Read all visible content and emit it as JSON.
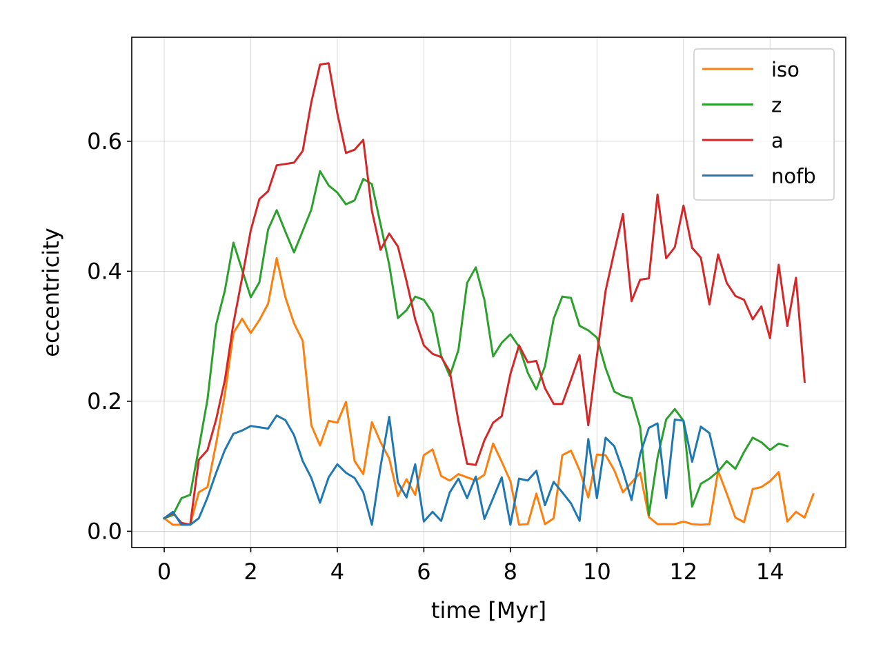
{
  "chart_data": {
    "type": "line",
    "title": "",
    "xlabel": "time   [Myr]",
    "ylabel": "eccentricity",
    "xlim": [
      -0.75,
      15.75
    ],
    "ylim": [
      -0.025,
      0.76
    ],
    "xticks": [
      0,
      2,
      4,
      6,
      8,
      10,
      12,
      14
    ],
    "xtick_labels": [
      "0",
      "2",
      "4",
      "6",
      "8",
      "10",
      "12",
      "14"
    ],
    "yticks": [
      0.0,
      0.2,
      0.4,
      0.6
    ],
    "ytick_labels": [
      "0.0",
      "0.2",
      "0.4",
      "0.6"
    ],
    "grid": true,
    "legend_position": "top-right",
    "series": [
      {
        "name": "iso",
        "color": "#ff7f0e",
        "x": [
          0.0,
          0.2,
          0.4,
          0.6,
          0.8,
          1.0,
          1.2,
          1.4,
          1.6,
          1.8,
          2.0,
          2.2,
          2.4,
          2.6,
          2.8,
          3.0,
          3.2,
          3.4,
          3.6,
          3.8,
          4.0,
          4.2,
          4.4,
          4.6,
          4.8,
          5.0,
          5.2,
          5.4,
          5.6,
          5.8,
          6.0,
          6.2,
          6.4,
          6.6,
          6.8,
          7.0,
          7.2,
          7.4,
          7.6,
          7.8,
          8.0,
          8.2,
          8.4,
          8.6,
          8.8,
          9.0,
          9.2,
          9.4,
          9.6,
          9.8,
          10.0,
          10.2,
          10.4,
          10.6,
          10.8,
          11.0,
          11.2,
          11.4,
          11.6,
          11.8,
          12.0,
          12.2,
          12.4,
          12.6,
          12.8,
          13.0,
          13.2,
          13.4,
          13.6,
          13.8,
          14.0,
          14.2,
          14.4,
          14.6,
          14.8,
          15.0
        ],
        "y": [
          0.02,
          0.01,
          0.01,
          0.01,
          0.06,
          0.068,
          0.135,
          0.21,
          0.305,
          0.327,
          0.305,
          0.325,
          0.35,
          0.42,
          0.36,
          0.32,
          0.293,
          0.163,
          0.132,
          0.17,
          0.167,
          0.199,
          0.108,
          0.088,
          0.168,
          0.137,
          0.112,
          0.054,
          0.08,
          0.056,
          0.117,
          0.126,
          0.085,
          0.078,
          0.088,
          0.083,
          0.078,
          0.087,
          0.135,
          0.107,
          0.077,
          0.01,
          0.011,
          0.058,
          0.011,
          0.02,
          0.117,
          0.124,
          0.094,
          0.052,
          0.118,
          0.117,
          0.094,
          0.06,
          0.075,
          0.09,
          0.022,
          0.011,
          0.011,
          0.011,
          0.015,
          0.011,
          0.01,
          0.011,
          0.093,
          0.058,
          0.021,
          0.014,
          0.065,
          0.068,
          0.077,
          0.091,
          0.015,
          0.03,
          0.021,
          0.057
        ]
      },
      {
        "name": "z",
        "color": "#2ca02c",
        "x": [
          0.0,
          0.2,
          0.4,
          0.6,
          0.8,
          1.0,
          1.2,
          1.4,
          1.6,
          1.8,
          2.0,
          2.2,
          2.4,
          2.6,
          2.8,
          3.0,
          3.2,
          3.4,
          3.6,
          3.8,
          4.0,
          4.2,
          4.4,
          4.6,
          4.8,
          5.0,
          5.2,
          5.4,
          5.6,
          5.8,
          6.0,
          6.2,
          6.4,
          6.6,
          6.8,
          7.0,
          7.2,
          7.4,
          7.6,
          7.8,
          8.0,
          8.2,
          8.4,
          8.6,
          8.8,
          9.0,
          9.2,
          9.4,
          9.6,
          9.8,
          10.0,
          10.2,
          10.4,
          10.6,
          10.8,
          11.0,
          11.2,
          11.4,
          11.6,
          11.8,
          12.0,
          12.2,
          12.4,
          12.6,
          12.8,
          13.0,
          13.2,
          13.4,
          13.6,
          13.8,
          14.0,
          14.2,
          14.4
        ],
        "y": [
          0.02,
          0.025,
          0.051,
          0.056,
          0.128,
          0.203,
          0.318,
          0.37,
          0.444,
          0.402,
          0.36,
          0.383,
          0.464,
          0.494,
          0.461,
          0.429,
          0.462,
          0.495,
          0.554,
          0.532,
          0.521,
          0.503,
          0.509,
          0.542,
          0.534,
          0.472,
          0.41,
          0.328,
          0.34,
          0.361,
          0.356,
          0.336,
          0.27,
          0.239,
          0.279,
          0.382,
          0.406,
          0.356,
          0.269,
          0.29,
          0.303,
          0.284,
          0.244,
          0.218,
          0.254,
          0.327,
          0.361,
          0.359,
          0.316,
          0.309,
          0.298,
          0.251,
          0.215,
          0.208,
          0.205,
          0.16,
          0.025,
          0.113,
          0.172,
          0.188,
          0.17,
          0.038,
          0.073,
          0.081,
          0.092,
          0.108,
          0.096,
          0.122,
          0.144,
          0.137,
          0.125,
          0.135,
          0.131
        ]
      },
      {
        "name": "a",
        "color": "#d62728",
        "x": [
          0.0,
          0.2,
          0.4,
          0.6,
          0.8,
          1.0,
          1.2,
          1.4,
          1.6,
          1.8,
          2.0,
          2.2,
          2.4,
          2.6,
          2.8,
          3.0,
          3.2,
          3.4,
          3.6,
          3.8,
          4.0,
          4.2,
          4.4,
          4.6,
          4.8,
          5.0,
          5.2,
          5.4,
          5.6,
          5.8,
          6.0,
          6.2,
          6.4,
          6.6,
          6.8,
          7.0,
          7.2,
          7.4,
          7.6,
          7.8,
          8.0,
          8.2,
          8.4,
          8.6,
          8.8,
          9.0,
          9.2,
          9.4,
          9.6,
          9.8,
          10.0,
          10.2,
          10.4,
          10.6,
          10.8,
          11.0,
          11.2,
          11.4,
          11.6,
          11.8,
          12.0,
          12.2,
          12.4,
          12.6,
          12.8,
          13.0,
          13.2,
          13.4,
          13.6,
          13.8,
          14.0,
          14.2,
          14.4,
          14.6,
          14.8
        ],
        "y": [
          0.02,
          0.028,
          0.013,
          0.01,
          0.11,
          0.125,
          0.172,
          0.232,
          0.32,
          0.39,
          0.463,
          0.511,
          0.523,
          0.563,
          0.565,
          0.567,
          0.585,
          0.66,
          0.718,
          0.72,
          0.643,
          0.582,
          0.587,
          0.602,
          0.493,
          0.433,
          0.458,
          0.438,
          0.385,
          0.326,
          0.286,
          0.273,
          0.268,
          0.246,
          0.169,
          0.104,
          0.102,
          0.14,
          0.167,
          0.177,
          0.242,
          0.286,
          0.26,
          0.262,
          0.22,
          0.196,
          0.196,
          0.233,
          0.271,
          0.163,
          0.27,
          0.37,
          0.43,
          0.488,
          0.354,
          0.387,
          0.389,
          0.518,
          0.42,
          0.437,
          0.501,
          0.436,
          0.421,
          0.349,
          0.426,
          0.382,
          0.362,
          0.356,
          0.326,
          0.346,
          0.297,
          0.41,
          0.316,
          0.39,
          0.23
        ]
      },
      {
        "name": "nofb",
        "color": "#1f77b4",
        "x": [
          0.0,
          0.2,
          0.4,
          0.6,
          0.8,
          1.0,
          1.2,
          1.4,
          1.6,
          1.8,
          2.0,
          2.2,
          2.4,
          2.6,
          2.8,
          3.0,
          3.2,
          3.4,
          3.6,
          3.8,
          4.0,
          4.2,
          4.4,
          4.6,
          4.8,
          5.0,
          5.2,
          5.4,
          5.6,
          5.8,
          6.0,
          6.2,
          6.4,
          6.6,
          6.8,
          7.0,
          7.2,
          7.4,
          7.6,
          7.8,
          8.0,
          8.2,
          8.4,
          8.6,
          8.8,
          9.0,
          9.2,
          9.4,
          9.6,
          9.8,
          10.0,
          10.2,
          10.4,
          10.6,
          10.8,
          11.0,
          11.2,
          11.4,
          11.6,
          11.8,
          12.0,
          12.2,
          12.4,
          12.6,
          12.8
        ],
        "y": [
          0.02,
          0.03,
          0.01,
          0.01,
          0.02,
          0.052,
          0.09,
          0.125,
          0.15,
          0.155,
          0.162,
          0.16,
          0.158,
          0.178,
          0.171,
          0.148,
          0.108,
          0.082,
          0.044,
          0.083,
          0.103,
          0.09,
          0.082,
          0.06,
          0.01,
          0.1,
          0.176,
          0.075,
          0.052,
          0.103,
          0.015,
          0.03,
          0.016,
          0.06,
          0.081,
          0.051,
          0.084,
          0.019,
          0.051,
          0.083,
          0.01,
          0.081,
          0.078,
          0.093,
          0.04,
          0.076,
          0.06,
          0.043,
          0.016,
          0.142,
          0.051,
          0.144,
          0.131,
          0.093,
          0.048,
          0.119,
          0.159,
          0.166,
          0.051,
          0.172,
          0.17,
          0.107,
          0.161,
          0.151,
          0.094
        ]
      }
    ]
  }
}
